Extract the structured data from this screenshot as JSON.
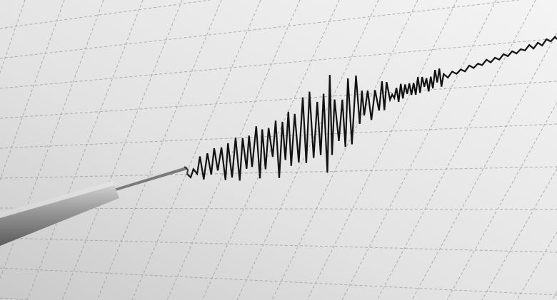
{
  "scene": {
    "subject": "seismograph",
    "colors": {
      "paper_light": "#f2f2f2",
      "paper_dark": "#cfcfcf",
      "grid": "#9a9a9a",
      "trace": "#111111",
      "pen_body": "#8f8f8f",
      "pen_highlight": "#d8d8d8"
    }
  }
}
